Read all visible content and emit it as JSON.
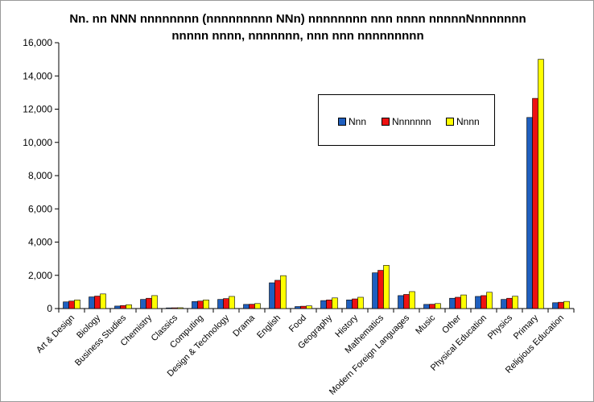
{
  "chart_data": {
    "type": "bar",
    "title": "Nn. nn NNN nnnnnnnn (nnnnnnnnn NNn) nnnnnnnn nnn nnnn nnnnnNnnnnnnn",
    "subtitle": "nnnnn nnnn, nnnnnnn, nnn nnn nnnnnnnnn",
    "xlabel": "",
    "ylabel": "",
    "ylim": [
      0,
      16000
    ],
    "yticks": [
      "0",
      "2,000",
      "4,000",
      "6,000",
      "8,000",
      "10,000",
      "12,000",
      "14,000",
      "16,000"
    ],
    "ytick_values": [
      0,
      2000,
      4000,
      6000,
      8000,
      10000,
      12000,
      14000,
      16000
    ],
    "grid": false,
    "legend_position": "top-right",
    "categories": [
      "Art & Design",
      "Biology",
      "Business Studies",
      "Chemistry",
      "Classics",
      "Computing",
      "Design & Technology",
      "Drama",
      "English",
      "Food",
      "Geography",
      "History",
      "Mathematics",
      "Modern Foreign Languages",
      "Music",
      "Other",
      "Physical Education",
      "Physics",
      "Primary",
      "Religious Education"
    ],
    "series": [
      {
        "name": "Nnn",
        "color": "#1f5fbf",
        "values": [
          400,
          700,
          150,
          550,
          40,
          420,
          550,
          250,
          1550,
          120,
          480,
          520,
          2150,
          780,
          250,
          620,
          730,
          550,
          11500,
          350
        ]
      },
      {
        "name": "Nnnnnnn",
        "color": "#ee1111",
        "values": [
          450,
          750,
          180,
          620,
          45,
          450,
          600,
          260,
          1700,
          140,
          520,
          580,
          2300,
          850,
          260,
          680,
          780,
          620,
          12650,
          380
        ]
      },
      {
        "name": "Nnnn",
        "color": "#ffff00",
        "values": [
          520,
          880,
          230,
          780,
          50,
          520,
          730,
          300,
          1980,
          160,
          640,
          680,
          2600,
          1020,
          300,
          820,
          980,
          740,
          15000,
          430
        ]
      }
    ]
  }
}
